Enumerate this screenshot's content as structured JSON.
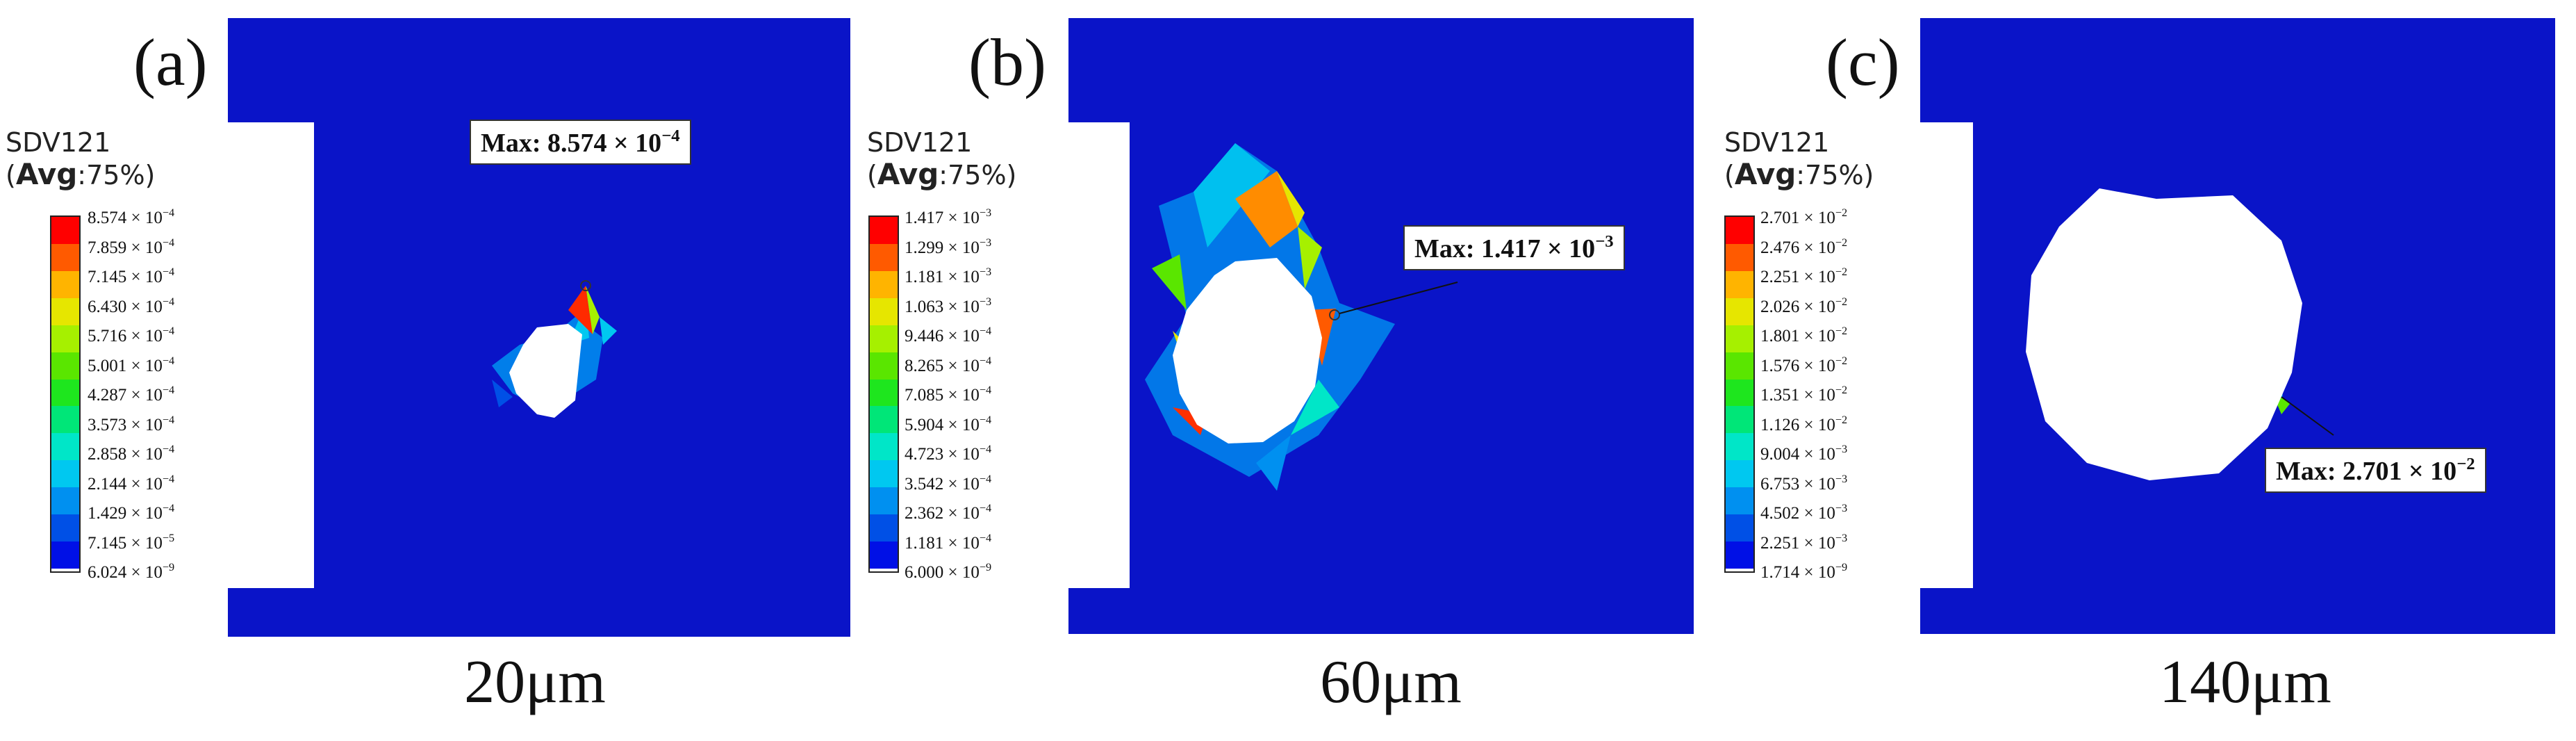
{
  "legend_title": "SDV121",
  "legend_avg_prefix": "(",
  "legend_avg_bold": "Avg",
  "legend_avg_suffix": ":75%)",
  "colors": [
    "#ff0000",
    "#ff5a00",
    "#ffb400",
    "#e6e600",
    "#a6f000",
    "#5ae600",
    "#1ee61e",
    "#00e678",
    "#00e6c8",
    "#00c8f0",
    "#0090f0",
    "#0050e6",
    "#0010e6"
  ],
  "panels": [
    {
      "label": "(a)",
      "caption": "20μm",
      "max_label": "Max: 8.574 × 10",
      "max_exp": "−4",
      "ticks": [
        {
          "m": "8.574",
          "e": "−4"
        },
        {
          "m": "7.859",
          "e": "−4"
        },
        {
          "m": "7.145",
          "e": "−4"
        },
        {
          "m": "6.430",
          "e": "−4"
        },
        {
          "m": "5.716",
          "e": "−4"
        },
        {
          "m": "5.001",
          "e": "−4"
        },
        {
          "m": "4.287",
          "e": "−4"
        },
        {
          "m": "3.573",
          "e": "−4"
        },
        {
          "m": "2.858",
          "e": "−4"
        },
        {
          "m": "2.144",
          "e": "−4"
        },
        {
          "m": "1.429",
          "e": "−4"
        },
        {
          "m": "7.145",
          "e": "−5"
        },
        {
          "m": "6.024",
          "e": "−9"
        }
      ]
    },
    {
      "label": "(b)",
      "caption": "60μm",
      "max_label": "Max: 1.417 × 10",
      "max_exp": "−3",
      "ticks": [
        {
          "m": "1.417",
          "e": "−3"
        },
        {
          "m": "1.299",
          "e": "−3"
        },
        {
          "m": "1.181",
          "e": "−3"
        },
        {
          "m": "1.063",
          "e": "−3"
        },
        {
          "m": "9.446",
          "e": "−4"
        },
        {
          "m": "8.265",
          "e": "−4"
        },
        {
          "m": "7.085",
          "e": "−4"
        },
        {
          "m": "5.904",
          "e": "−4"
        },
        {
          "m": "4.723",
          "e": "−4"
        },
        {
          "m": "3.542",
          "e": "−4"
        },
        {
          "m": "2.362",
          "e": "−4"
        },
        {
          "m": "1.181",
          "e": "−4"
        },
        {
          "m": "6.000",
          "e": "−9"
        }
      ]
    },
    {
      "label": "(c)",
      "caption": "140μm",
      "max_label": "Max: 2.701 × 10",
      "max_exp": "−2",
      "ticks": [
        {
          "m": "2.701",
          "e": "−2"
        },
        {
          "m": "2.476",
          "e": "−2"
        },
        {
          "m": "2.251",
          "e": "−2"
        },
        {
          "m": "2.026",
          "e": "−2"
        },
        {
          "m": "1.801",
          "e": "−2"
        },
        {
          "m": "1.576",
          "e": "−2"
        },
        {
          "m": "1.351",
          "e": "−2"
        },
        {
          "m": "1.126",
          "e": "−2"
        },
        {
          "m": "9.004",
          "e": "−3"
        },
        {
          "m": "6.753",
          "e": "−3"
        },
        {
          "m": "4.502",
          "e": "−3"
        },
        {
          "m": "2.251",
          "e": "−3"
        },
        {
          "m": "1.714",
          "e": "−9"
        }
      ]
    }
  ]
}
